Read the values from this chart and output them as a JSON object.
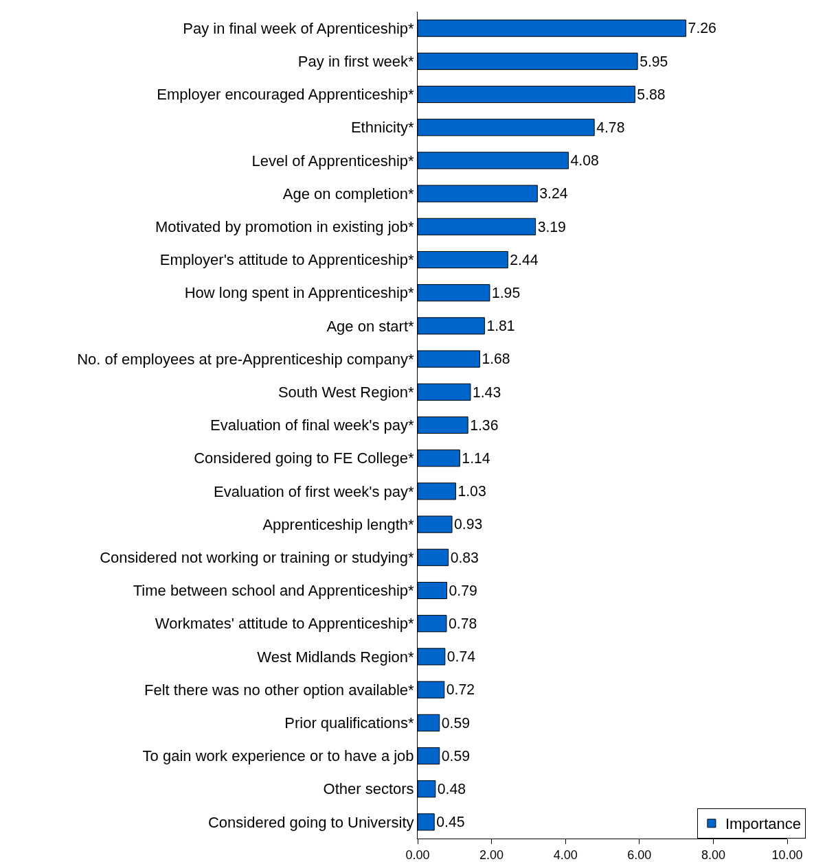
{
  "chart_data": {
    "type": "bar",
    "orientation": "horizontal",
    "categories": [
      "Pay in final week of Aprenticeship*",
      "Pay in first week*",
      "Employer encouraged Apprenticeship*",
      "Ethnicity*",
      "Level of Apprenticeship*",
      "Age on completion*",
      "Motivated by promotion in existing job*",
      "Employer's attitude to Apprenticeship*",
      "How long spent in Apprenticeship*",
      "Age on start*",
      "No. of employees at pre-Apprenticeship company*",
      "South West Region*",
      "Evaluation of final week's pay*",
      "Considered going to FE College*",
      "Evaluation of first week's pay*",
      "Apprenticeship length*",
      "Considered not working or training or studying*",
      "Time between school and Apprenticeship*",
      "Workmates' attitude to Apprenticeship*",
      "West Midlands Region*",
      "Felt there was no other option available*",
      "Prior qualifications*",
      "To gain work experience or to have a job",
      "Other sectors",
      "Considered going to University"
    ],
    "series": [
      {
        "name": "Importance",
        "color": "#0066cc",
        "values": [
          7.26,
          5.95,
          5.88,
          4.78,
          4.08,
          3.24,
          3.19,
          2.44,
          1.95,
          1.81,
          1.68,
          1.43,
          1.36,
          1.14,
          1.03,
          0.93,
          0.83,
          0.79,
          0.78,
          0.74,
          0.72,
          0.59,
          0.59,
          0.48,
          0.45
        ]
      }
    ],
    "xlim": [
      0,
      10
    ],
    "xticks": [
      {
        "value": 0,
        "label": "0.00"
      },
      {
        "value": 2,
        "label": "2.00"
      },
      {
        "value": 4,
        "label": "4.00"
      },
      {
        "value": 6,
        "label": "6.00"
      },
      {
        "value": 8,
        "label": "8.00"
      },
      {
        "value": 10,
        "label": "10.00"
      }
    ],
    "data_labels": true,
    "grid": false,
    "legend": "bottom right"
  }
}
